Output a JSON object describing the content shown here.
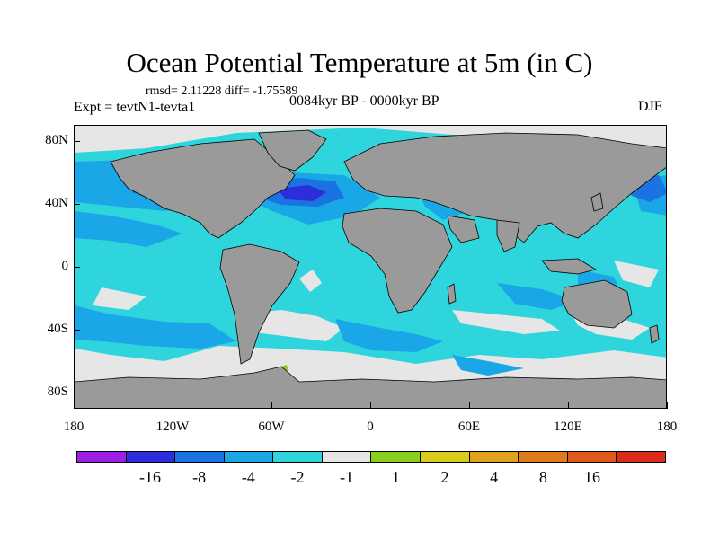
{
  "title": "Ocean Potential Temperature at 5m (in C)",
  "stats": "rmsd= 2.11228 diff= -1.75589",
  "experiment": "Expt = tevtN1-tevta1",
  "period": "0084kyr BP - 0000kyr BP",
  "season": "DJF",
  "y_axis_ticks": [
    {
      "label": "80N",
      "lat": 80
    },
    {
      "label": "40N",
      "lat": 40
    },
    {
      "label": "0",
      "lat": 0
    },
    {
      "label": "40S",
      "lat": -40
    },
    {
      "label": "80S",
      "lat": -80
    }
  ],
  "x_axis_ticks": [
    {
      "label": "180",
      "lon": -180
    },
    {
      "label": "120W",
      "lon": -120
    },
    {
      "label": "60W",
      "lon": -60
    },
    {
      "label": "0",
      "lon": 0
    },
    {
      "label": "60E",
      "lon": 60
    },
    {
      "label": "120E",
      "lon": 120
    },
    {
      "label": "180",
      "lon": 180
    }
  ],
  "colorbar": {
    "colors": [
      "#9b1fe6",
      "#2d2ddb",
      "#1a73e0",
      "#19a7e8",
      "#2fd5dd",
      "#e6e6e6",
      "#8ccf1a",
      "#d9cc1a",
      "#e0a21a",
      "#e07a1a",
      "#e0581a",
      "#d92d1a"
    ],
    "labels": [
      "-16",
      "-8",
      "-4",
      "-2",
      "-1",
      "1",
      "2",
      "4",
      "8",
      "16"
    ]
  },
  "colors": {
    "land": "#9a9a9a",
    "ocean_base": "#2fd5dd",
    "coast": "#000000"
  }
}
